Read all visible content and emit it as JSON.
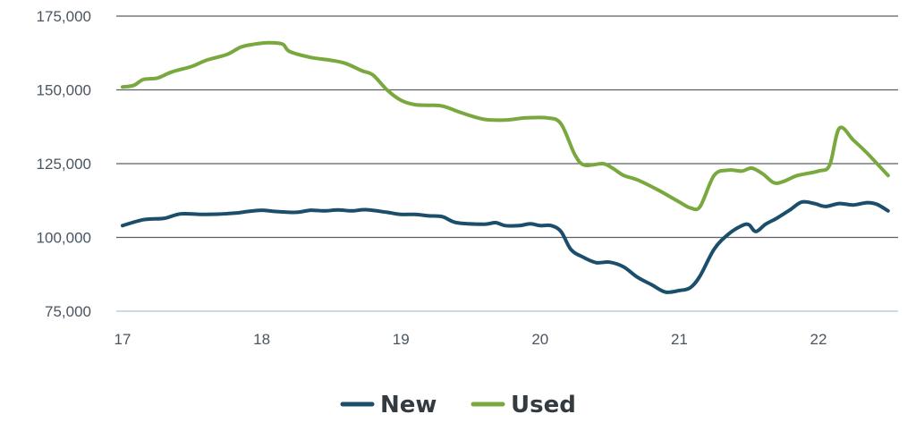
{
  "chart_data": {
    "type": "line",
    "title": "",
    "xlabel": "",
    "ylabel": "",
    "xlim": [
      17,
      22.5
    ],
    "ylim": [
      75000,
      175000
    ],
    "x_ticks": [
      17,
      18,
      19,
      20,
      21,
      22
    ],
    "x_tick_labels": [
      "17",
      "18",
      "19",
      "20",
      "21",
      "22"
    ],
    "y_ticks": [
      75000,
      100000,
      125000,
      150000,
      175000
    ],
    "y_tick_labels": [
      "75,000",
      "100,000",
      "125,000",
      "150,000",
      "175,000"
    ],
    "grid": "horizontal",
    "legend_position": "bottom-center",
    "series": [
      {
        "name": "New",
        "color": "#1a4e6b",
        "points": [
          [
            17.0,
            104000
          ],
          [
            17.15,
            106000
          ],
          [
            17.3,
            106500
          ],
          [
            17.42,
            108000
          ],
          [
            17.6,
            107800
          ],
          [
            17.8,
            108200
          ],
          [
            17.9,
            108800
          ],
          [
            18.0,
            109200
          ],
          [
            18.1,
            108800
          ],
          [
            18.25,
            108500
          ],
          [
            18.35,
            109200
          ],
          [
            18.45,
            109000
          ],
          [
            18.55,
            109300
          ],
          [
            18.65,
            109000
          ],
          [
            18.75,
            109400
          ],
          [
            18.9,
            108500
          ],
          [
            19.0,
            107800
          ],
          [
            19.1,
            107800
          ],
          [
            19.2,
            107300
          ],
          [
            19.3,
            107000
          ],
          [
            19.4,
            105000
          ],
          [
            19.6,
            104500
          ],
          [
            19.68,
            105000
          ],
          [
            19.75,
            104000
          ],
          [
            19.85,
            104000
          ],
          [
            19.93,
            104600
          ],
          [
            20.0,
            104000
          ],
          [
            20.08,
            104000
          ],
          [
            20.15,
            102000
          ],
          [
            20.22,
            96000
          ],
          [
            20.3,
            93500
          ],
          [
            20.4,
            91500
          ],
          [
            20.5,
            91600
          ],
          [
            20.6,
            90000
          ],
          [
            20.7,
            86500
          ],
          [
            20.8,
            84000
          ],
          [
            20.9,
            81500
          ],
          [
            21.0,
            82000
          ],
          [
            21.08,
            83000
          ],
          [
            21.15,
            87000
          ],
          [
            21.25,
            96000
          ],
          [
            21.35,
            101000
          ],
          [
            21.45,
            104000
          ],
          [
            21.5,
            104300
          ],
          [
            21.55,
            102000
          ],
          [
            21.62,
            104500
          ],
          [
            21.7,
            106500
          ],
          [
            21.8,
            109500
          ],
          [
            21.88,
            112000
          ],
          [
            21.97,
            111500
          ],
          [
            22.05,
            110500
          ],
          [
            22.15,
            111500
          ],
          [
            22.25,
            111000
          ],
          [
            22.35,
            111800
          ],
          [
            22.42,
            111200
          ],
          [
            22.5,
            109000
          ]
        ]
      },
      {
        "name": "Used",
        "color": "#78a83e",
        "points": [
          [
            17.0,
            151000
          ],
          [
            17.08,
            151500
          ],
          [
            17.15,
            153500
          ],
          [
            17.25,
            154000
          ],
          [
            17.35,
            156000
          ],
          [
            17.5,
            158000
          ],
          [
            17.6,
            160000
          ],
          [
            17.75,
            162000
          ],
          [
            17.85,
            164500
          ],
          [
            17.95,
            165500
          ],
          [
            18.05,
            166000
          ],
          [
            18.15,
            165500
          ],
          [
            18.2,
            163000
          ],
          [
            18.35,
            161000
          ],
          [
            18.5,
            160000
          ],
          [
            18.6,
            159000
          ],
          [
            18.72,
            156500
          ],
          [
            18.8,
            155000
          ],
          [
            18.9,
            150000
          ],
          [
            19.0,
            146500
          ],
          [
            19.1,
            145000
          ],
          [
            19.2,
            144800
          ],
          [
            19.3,
            144500
          ],
          [
            19.45,
            142000
          ],
          [
            19.6,
            140000
          ],
          [
            19.75,
            139800
          ],
          [
            19.9,
            140500
          ],
          [
            20.05,
            140500
          ],
          [
            20.15,
            138500
          ],
          [
            20.25,
            128000
          ],
          [
            20.32,
            124500
          ],
          [
            20.45,
            125000
          ],
          [
            20.52,
            123500
          ],
          [
            20.6,
            121000
          ],
          [
            20.7,
            119500
          ],
          [
            20.85,
            116000
          ],
          [
            21.0,
            112000
          ],
          [
            21.08,
            110000
          ],
          [
            21.15,
            110500
          ],
          [
            21.25,
            121000
          ],
          [
            21.35,
            122800
          ],
          [
            21.45,
            122500
          ],
          [
            21.52,
            123500
          ],
          [
            21.6,
            121500
          ],
          [
            21.68,
            118500
          ],
          [
            21.75,
            119000
          ],
          [
            21.85,
            121000
          ],
          [
            22.0,
            122500
          ],
          [
            22.08,
            124500
          ],
          [
            22.15,
            137000
          ],
          [
            22.25,
            133000
          ],
          [
            22.35,
            128500
          ],
          [
            22.5,
            121000
          ]
        ]
      }
    ]
  }
}
